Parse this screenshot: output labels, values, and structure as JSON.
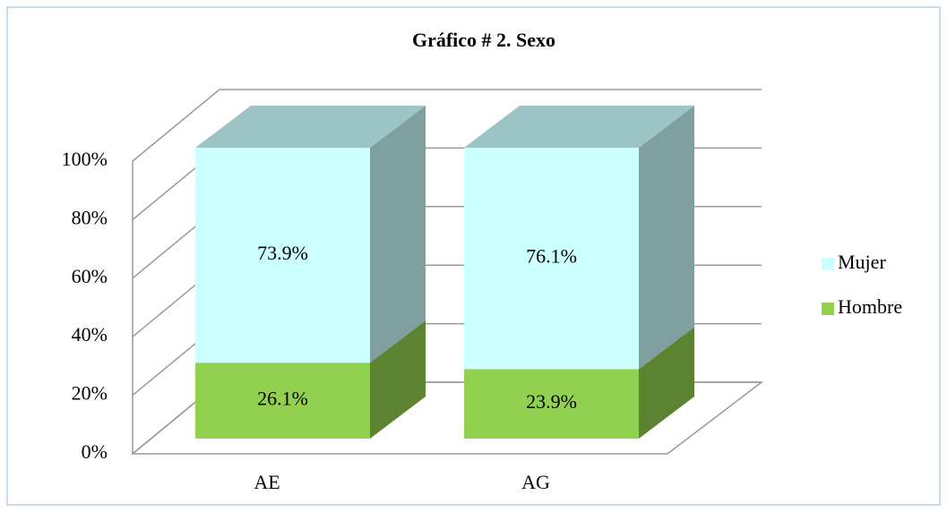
{
  "chart_data": {
    "type": "bar3d_stacked",
    "title": "Gráfico # 2. Sexo",
    "categories": [
      "AE",
      "AG"
    ],
    "series": [
      {
        "name": "Hombre",
        "color": "#92d050",
        "values": [
          26.1,
          23.9
        ],
        "value_labels": [
          "26.1%",
          "23.9%"
        ]
      },
      {
        "name": "Mujer",
        "color": "#ccffff",
        "values": [
          73.9,
          76.1
        ],
        "value_labels": [
          "73.9%",
          "76.1%"
        ]
      }
    ],
    "ylim": [
      0,
      100
    ],
    "yticks": [
      {
        "value": 0,
        "label": "0%"
      },
      {
        "value": 20,
        "label": "20%"
      },
      {
        "value": 40,
        "label": "40%"
      },
      {
        "value": 60,
        "label": "60%"
      },
      {
        "value": 80,
        "label": "80%"
      },
      {
        "value": 100,
        "label": "100%"
      }
    ],
    "grid": true,
    "legend": "right"
  }
}
